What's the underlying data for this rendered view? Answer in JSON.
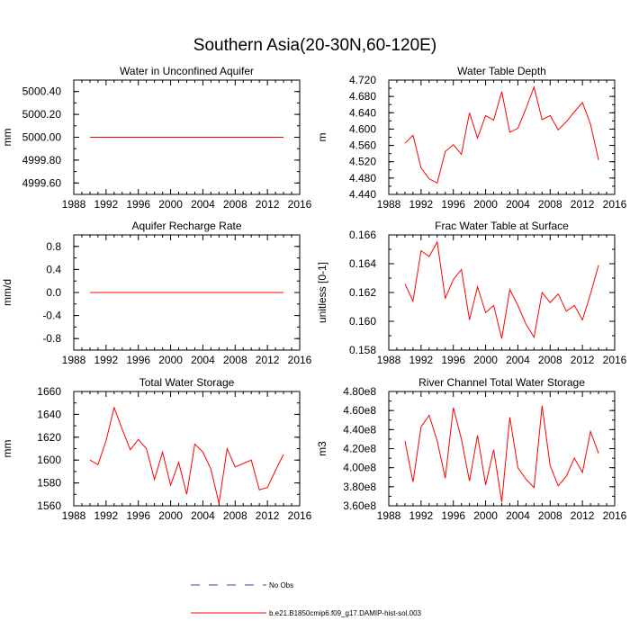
{
  "title": "Southern Asia(20-30N,60-120E)",
  "colors": {
    "model": "#ff0000",
    "obs": "#4a3ab0",
    "axis": "#000000"
  },
  "legend": [
    {
      "label": "No Obs",
      "style": "dashed",
      "color": "#4a3ab0"
    },
    {
      "label": "b.e21.B1850cmip6.f09_g17.DAMIP-hist-sol.003",
      "style": "solid",
      "color": "#ff0000"
    }
  ],
  "chart_data": [
    {
      "type": "line",
      "title": "Water in Unconfined Aquifer",
      "ylabel": "mm",
      "xlim": [
        1988,
        2016
      ],
      "xticks": [
        "1988",
        "1992",
        "1996",
        "2000",
        "2004",
        "2008",
        "2012",
        "2016"
      ],
      "ylim": [
        4999.5,
        5000.5
      ],
      "yticks": [
        "4999.60",
        "4999.80",
        "5000.00",
        "5000.20",
        "5000.40"
      ],
      "x": [
        1990,
        1991,
        1992,
        1993,
        1994,
        1995,
        1996,
        1997,
        1998,
        1999,
        2000,
        2001,
        2002,
        2003,
        2004,
        2005,
        2006,
        2007,
        2008,
        2009,
        2010,
        2011,
        2012,
        2013,
        2014
      ],
      "series": [
        {
          "values": [
            5000,
            5000,
            5000,
            5000,
            5000,
            5000,
            5000,
            5000,
            5000,
            5000,
            5000,
            5000,
            5000,
            5000,
            5000,
            5000,
            5000,
            5000,
            5000,
            5000,
            5000,
            5000,
            5000,
            5000,
            5000
          ]
        }
      ]
    },
    {
      "type": "line",
      "title": "Water Table Depth",
      "ylabel": "m",
      "xlim": [
        1988,
        2016
      ],
      "xticks": [
        "1988",
        "1992",
        "1996",
        "2000",
        "2004",
        "2008",
        "2012",
        "2016"
      ],
      "ylim": [
        4.44,
        4.72
      ],
      "yticks": [
        "4.440",
        "4.480",
        "4.520",
        "4.560",
        "4.600",
        "4.640",
        "4.680",
        "4.720"
      ],
      "x": [
        1990,
        1991,
        1992,
        1993,
        1994,
        1995,
        1996,
        1997,
        1998,
        1999,
        2000,
        2001,
        2002,
        2003,
        2004,
        2005,
        2006,
        2007,
        2008,
        2009,
        2010,
        2011,
        2012,
        2013,
        2014
      ],
      "series": [
        {
          "values": [
            4.565,
            4.585,
            4.505,
            4.478,
            4.468,
            4.545,
            4.562,
            4.538,
            4.64,
            4.578,
            4.633,
            4.622,
            4.692,
            4.592,
            4.602,
            4.65,
            4.703,
            4.623,
            4.633,
            4.598,
            4.618,
            4.642,
            4.665,
            4.612,
            4.524
          ]
        }
      ]
    },
    {
      "type": "line",
      "title": "Aquifer Recharge Rate",
      "ylabel": "mm/d",
      "xlim": [
        1988,
        2016
      ],
      "xticks": [
        "1988",
        "1992",
        "1996",
        "2000",
        "2004",
        "2008",
        "2012",
        "2016"
      ],
      "ylim": [
        -1.0,
        1.0
      ],
      "yticks": [
        "-0.8",
        "-0.4",
        "0.0",
        "0.4",
        "0.8"
      ],
      "x": [
        1990,
        1991,
        1992,
        1993,
        1994,
        1995,
        1996,
        1997,
        1998,
        1999,
        2000,
        2001,
        2002,
        2003,
        2004,
        2005,
        2006,
        2007,
        2008,
        2009,
        2010,
        2011,
        2012,
        2013,
        2014
      ],
      "series": [
        {
          "values": [
            0,
            0,
            0,
            0,
            0,
            0,
            0,
            0,
            0,
            0,
            0,
            0,
            0,
            0,
            0,
            0,
            0,
            0,
            0,
            0,
            0,
            0,
            0,
            0,
            0
          ]
        }
      ]
    },
    {
      "type": "line",
      "title": "Frac Water Table at Surface",
      "ylabel": "unitless [0-1]",
      "xlim": [
        1988,
        2016
      ],
      "xticks": [
        "1988",
        "1992",
        "1996",
        "2000",
        "2004",
        "2008",
        "2012",
        "2016"
      ],
      "ylim": [
        0.158,
        0.166
      ],
      "yticks": [
        "0.158",
        "0.160",
        "0.162",
        "0.164",
        "0.166"
      ],
      "x": [
        1990,
        1991,
        1992,
        1993,
        1994,
        1995,
        1996,
        1997,
        1998,
        1999,
        2000,
        2001,
        2002,
        2003,
        2004,
        2005,
        2006,
        2007,
        2008,
        2009,
        2010,
        2011,
        2012,
        2013,
        2014
      ],
      "series": [
        {
          "values": [
            0.1626,
            0.1614,
            0.1649,
            0.1645,
            0.1655,
            0.1616,
            0.1629,
            0.1636,
            0.1601,
            0.1624,
            0.1606,
            0.1611,
            0.1588,
            0.1622,
            0.1611,
            0.1598,
            0.1589,
            0.162,
            0.1613,
            0.1619,
            0.1607,
            0.1611,
            0.1601,
            0.1619,
            0.1639
          ]
        }
      ]
    },
    {
      "type": "line",
      "title": "Total Water Storage",
      "ylabel": "mm",
      "xlim": [
        1988,
        2016
      ],
      "xticks": [
        "1988",
        "1992",
        "1996",
        "2000",
        "2004",
        "2008",
        "2012",
        "2016"
      ],
      "ylim": [
        1560,
        1660
      ],
      "yticks": [
        "1560",
        "1580",
        "1600",
        "1620",
        "1640",
        "1660"
      ],
      "x": [
        1990,
        1991,
        1992,
        1993,
        1994,
        1995,
        1996,
        1997,
        1998,
        1999,
        2000,
        2001,
        2002,
        2003,
        2004,
        2005,
        2006,
        2007,
        2008,
        2009,
        2010,
        2011,
        2012,
        2013,
        2014
      ],
      "series": [
        {
          "values": [
            1600,
            1596,
            1617,
            1646,
            1627,
            1609,
            1618,
            1610,
            1583,
            1607,
            1578,
            1598,
            1570,
            1614,
            1607,
            1592,
            1562,
            1610,
            1594,
            1597,
            1600,
            1574,
            1576,
            1591,
            1605
          ]
        }
      ]
    },
    {
      "type": "line",
      "title": "River Channel Total Water Storage",
      "ylabel": "m3",
      "xlim": [
        1988,
        2016
      ],
      "xticks": [
        "1988",
        "1992",
        "1996",
        "2000",
        "2004",
        "2008",
        "2012",
        "2016"
      ],
      "ylim": [
        360000000.0,
        480000000.0
      ],
      "yticks": [
        "3.60e8",
        "3.80e8",
        "4.00e8",
        "4.20e8",
        "4.40e8",
        "4.60e8",
        "4.80e8"
      ],
      "x": [
        1990,
        1991,
        1992,
        1993,
        1994,
        1995,
        1996,
        1997,
        1998,
        1999,
        2000,
        2001,
        2002,
        2003,
        2004,
        2005,
        2006,
        2007,
        2008,
        2009,
        2010,
        2011,
        2012,
        2013,
        2014
      ],
      "series": [
        {
          "values": [
            428000000.0,
            385000000.0,
            443000000.0,
            455000000.0,
            428000000.0,
            389000000.0,
            463000000.0,
            430000000.0,
            386000000.0,
            434000000.0,
            382000000.0,
            419000000.0,
            364000000.0,
            453000000.0,
            400000000.0,
            388000000.0,
            379000000.0,
            465000000.0,
            402000000.0,
            381000000.0,
            391000000.0,
            410000000.0,
            395000000.0,
            438000000.0,
            415000000.0
          ]
        }
      ]
    }
  ]
}
